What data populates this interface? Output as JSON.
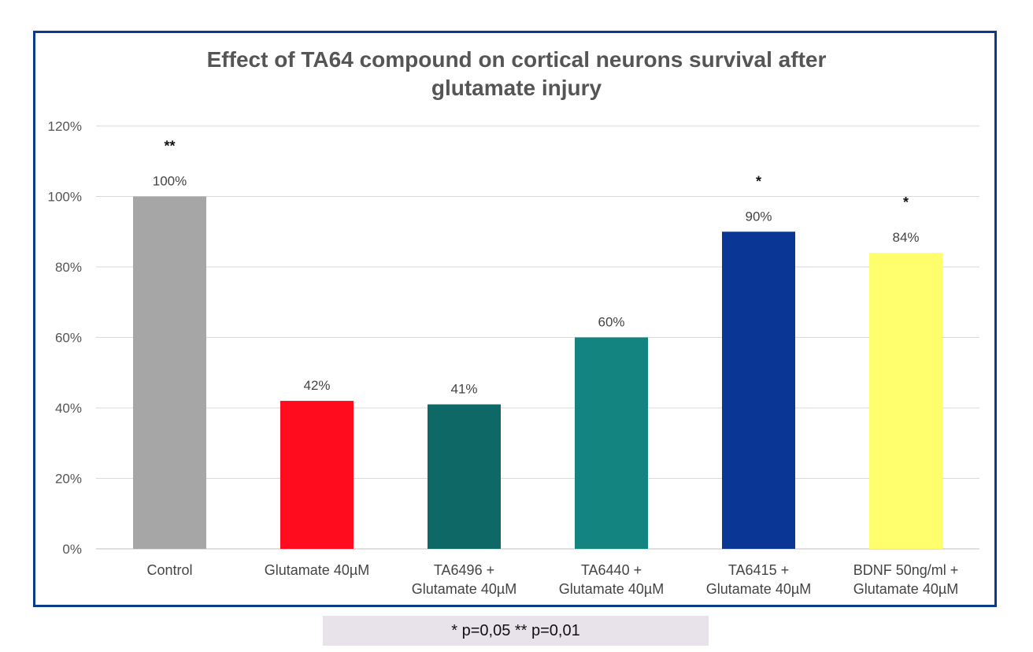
{
  "chart_data": {
    "type": "bar",
    "title_lines": [
      "Effect of TA64 compound on cortical neurons survival after",
      "glutamate injury"
    ],
    "categories": [
      [
        "Control"
      ],
      [
        "Glutamate 40µM"
      ],
      [
        "TA6496 +",
        "Glutamate 40µM"
      ],
      [
        "TA6440 +",
        "Glutamate 40µM"
      ],
      [
        "TA6415 +",
        "Glutamate 40µM"
      ],
      [
        "BDNF 50ng/ml +",
        "Glutamate 40µM"
      ]
    ],
    "values": [
      100,
      42,
      41,
      60,
      90,
      84
    ],
    "value_labels": [
      "100%",
      "42%",
      "41%",
      "60%",
      "90%",
      "84%"
    ],
    "significance": [
      "**",
      "",
      "",
      "",
      "*",
      "*"
    ],
    "colors": [
      "#a6a6a6",
      "#ff0d1e",
      "#0e6966",
      "#138480",
      "#0a3796",
      "#ffff6e"
    ],
    "ylim": [
      0,
      120
    ],
    "yticks": [
      0,
      20,
      40,
      60,
      80,
      100,
      120
    ],
    "ytick_labels": [
      "0%",
      "20%",
      "40%",
      "60%",
      "80%",
      "100%",
      "120%"
    ],
    "grid": true,
    "xlabel": "",
    "ylabel": ""
  },
  "footnote": "* p=0,05  ** p=0,01"
}
